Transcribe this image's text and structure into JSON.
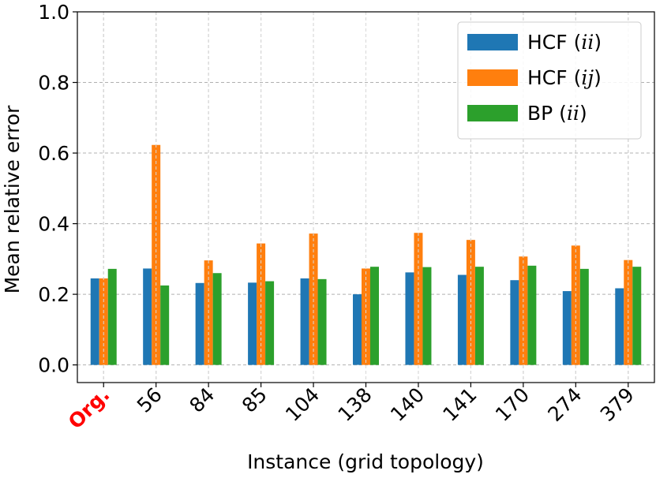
{
  "chart_data": {
    "type": "bar",
    "categories": [
      "Org.",
      "56",
      "84",
      "85",
      "104",
      "138",
      "140",
      "141",
      "170",
      "274",
      "379"
    ],
    "highlighted_category": "Org.",
    "highlight_color": "#ff0000",
    "series": [
      {
        "name": "HCF (ii)",
        "name_prefix": "HCF (",
        "name_math": "ii",
        "name_suffix": ")",
        "color": "#1f77b4",
        "values": [
          0.245,
          0.273,
          0.232,
          0.233,
          0.245,
          0.2,
          0.262,
          0.255,
          0.24,
          0.209,
          0.217
        ]
      },
      {
        "name": "HCF (ij)",
        "name_prefix": "HCF (",
        "name_math": "ij",
        "name_suffix": ")",
        "color": "#ff7f0e",
        "values": [
          0.245,
          0.623,
          0.296,
          0.344,
          0.372,
          0.273,
          0.374,
          0.354,
          0.307,
          0.338,
          0.297
        ]
      },
      {
        "name": "BP (ii)",
        "name_prefix": "BP (",
        "name_math": "ii",
        "name_suffix": ")",
        "color": "#2ca02c",
        "values": [
          0.272,
          0.225,
          0.26,
          0.237,
          0.243,
          0.278,
          0.277,
          0.278,
          0.281,
          0.272,
          0.278
        ]
      }
    ],
    "xlabel": "Instance (grid topology)",
    "ylabel": "Mean relative error",
    "ylim": [
      -0.05,
      1.0
    ],
    "yticks": [
      "0.0",
      "0.2",
      "0.4",
      "0.6",
      "0.8",
      "1.0"
    ],
    "ytick_values": [
      0.0,
      0.2,
      0.4,
      0.6,
      0.8,
      1.0
    ],
    "grid": true,
    "legend_position": "top-right"
  }
}
